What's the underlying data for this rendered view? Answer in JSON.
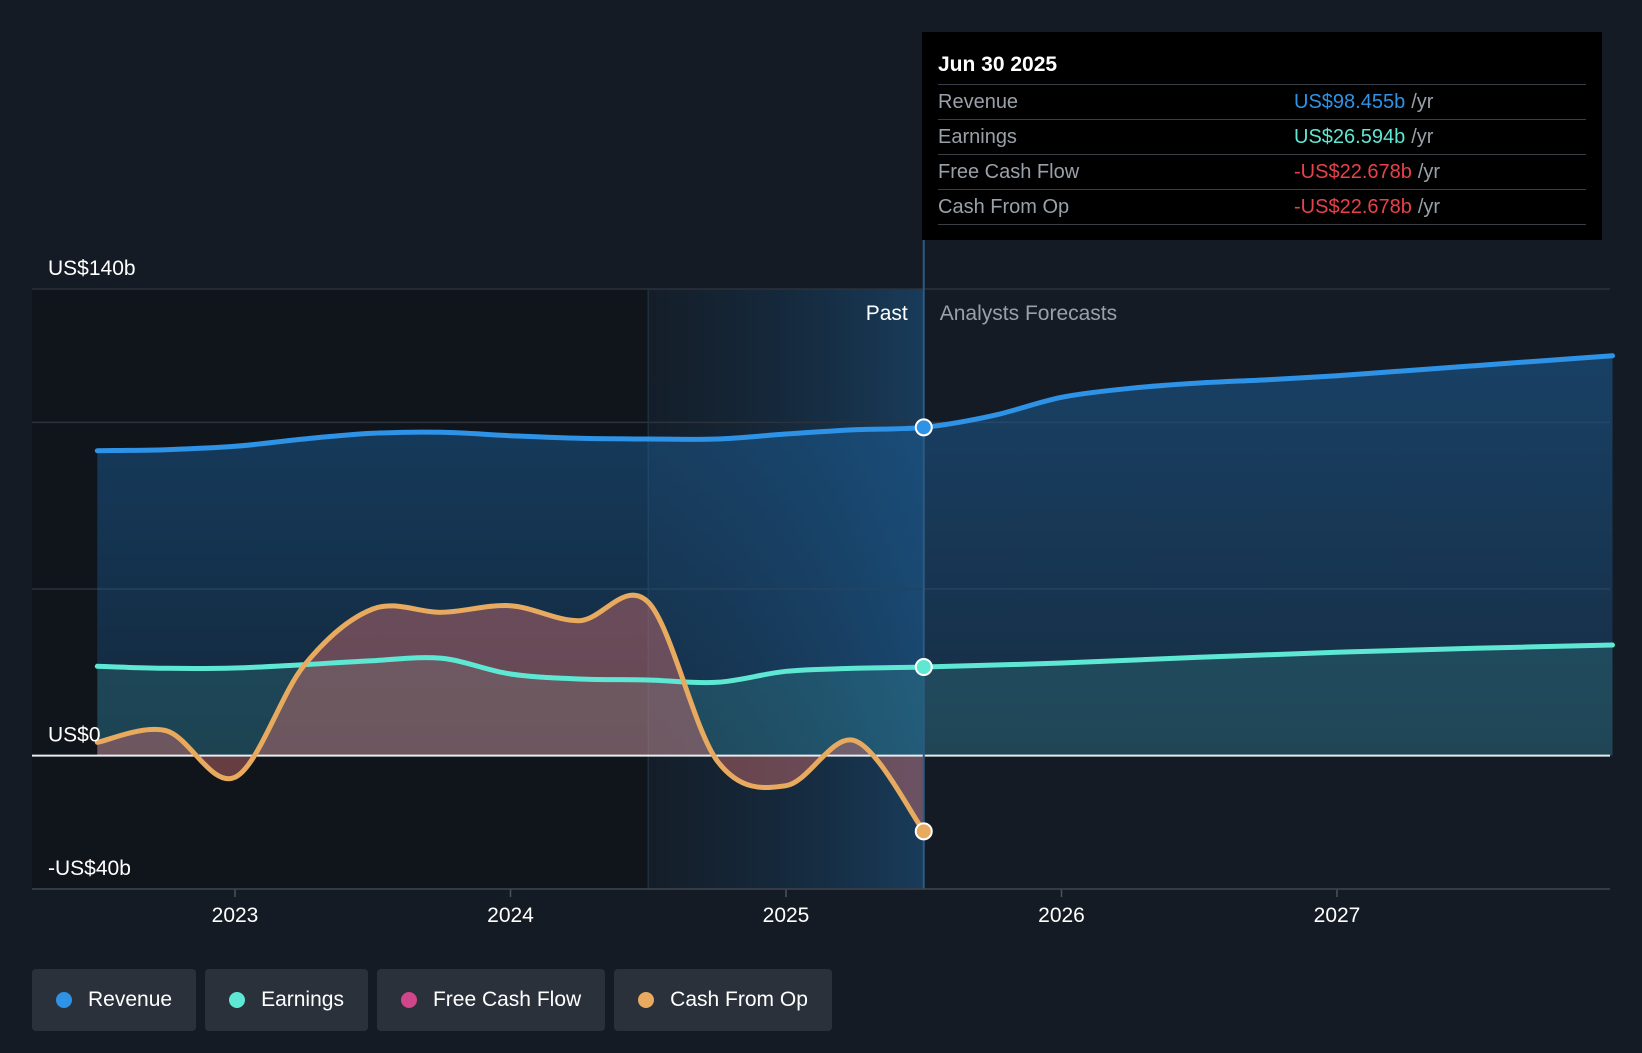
{
  "tooltip": {
    "date": "Jun 30 2025",
    "rows": [
      {
        "label": "Revenue",
        "value": "US$98.455b",
        "unit": "/yr",
        "color": "#2e93e6"
      },
      {
        "label": "Earnings",
        "value": "US$26.594b",
        "unit": "/yr",
        "color": "#5ee8d4"
      },
      {
        "label": "Free Cash Flow",
        "value": "-US$22.678b",
        "unit": "/yr",
        "color": "#e8414a"
      },
      {
        "label": "Cash From Op",
        "value": "-US$22.678b",
        "unit": "/yr",
        "color": "#e8414a"
      }
    ]
  },
  "legend": [
    {
      "label": "Revenue",
      "color": "#2e93e6"
    },
    {
      "label": "Earnings",
      "color": "#5ee8d4"
    },
    {
      "label": "Free Cash Flow",
      "color": "#d0468a"
    },
    {
      "label": "Cash From Op",
      "color": "#e8aa5e"
    }
  ],
  "chart_data": {
    "type": "line",
    "ylim": [
      -40,
      140
    ],
    "xlim": [
      2022.27,
      2028.0
    ],
    "y_tick_labels": [
      {
        "value": 140,
        "label": "US$140b"
      },
      {
        "value": 0,
        "label": "US$0"
      },
      {
        "value": -40,
        "label": "-US$40b"
      }
    ],
    "y_gridlines": [
      140,
      100,
      50,
      0,
      -40
    ],
    "x_ticks": [
      {
        "value": 2023,
        "label": "2023"
      },
      {
        "value": 2024,
        "label": "2024"
      },
      {
        "value": 2025,
        "label": "2025"
      },
      {
        "value": 2026,
        "label": "2026"
      },
      {
        "value": 2027,
        "label": "2027"
      }
    ],
    "past_start": 2024.5,
    "past_end": 2025.5,
    "past_label": "Past",
    "forecast_label": "Analysts Forecasts",
    "series": [
      {
        "name": "Revenue",
        "color": "#2e93e6",
        "x": [
          2022.5,
          2022.75,
          2023.0,
          2023.25,
          2023.5,
          2023.75,
          2024.0,
          2024.25,
          2024.5,
          2024.75,
          2025.0,
          2025.25,
          2025.5,
          2025.75,
          2026.0,
          2026.25,
          2026.5,
          2026.75,
          2027.0,
          2027.25,
          2027.5,
          2027.75,
          2028.0
        ],
        "y": [
          91.5,
          91.8,
          92.8,
          95,
          96.7,
          97,
          96,
          95.2,
          95,
          95,
          96.5,
          97.8,
          98.5,
          102,
          107.5,
          110.2,
          111.8,
          112.8,
          114,
          115.5,
          117,
          118.5,
          120
        ]
      },
      {
        "name": "Earnings",
        "color": "#5ee8d4",
        "x": [
          2022.5,
          2022.75,
          2023.0,
          2023.25,
          2023.5,
          2023.75,
          2024.0,
          2024.25,
          2024.5,
          2024.75,
          2025.0,
          2025.25,
          2025.5,
          2026.0,
          2026.5,
          2027.0,
          2027.5,
          2028.0
        ],
        "y": [
          26.8,
          26.2,
          26.3,
          27.3,
          28.5,
          29.2,
          24.5,
          23,
          22.7,
          22,
          25.3,
          26.2,
          26.6,
          27.8,
          29.5,
          31,
          32.2,
          33.2
        ]
      },
      {
        "name": "Cash From Op",
        "color": "#e8aa5e",
        "x": [
          2022.5,
          2022.75,
          2023.0,
          2023.25,
          2023.5,
          2023.75,
          2024.0,
          2024.25,
          2024.5,
          2024.75,
          2025.0,
          2025.25,
          2025.5
        ],
        "y": [
          4,
          7.5,
          -6.5,
          27,
          44,
          43,
          45,
          40.5,
          46,
          -1.5,
          -9,
          4.5,
          -22.7
        ]
      }
    ]
  }
}
